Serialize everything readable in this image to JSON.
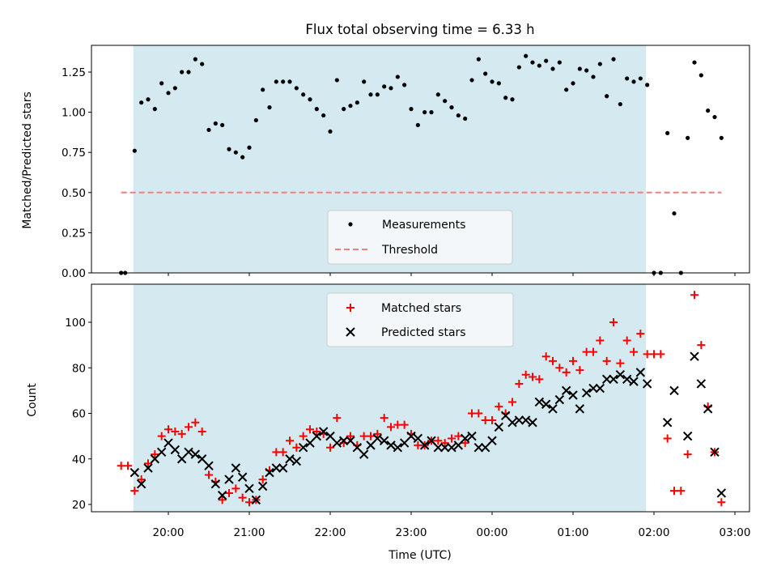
{
  "chart_data": [
    {
      "type": "scatter",
      "title": "Flux total observing time = 6.33 h",
      "ylabel": "Matched/Predicted stars",
      "ylim": [
        0,
        1.42
      ],
      "yticks": [
        "0.00",
        "0.25",
        "0.50",
        "0.75",
        "1.00",
        "1.25"
      ],
      "shaded_region": {
        "x_start": "19:34",
        "x_end": "01:54",
        "color": "#d4eaf0"
      },
      "legend": {
        "position": "lower center",
        "entries": [
          "Measurements",
          "Threshold"
        ]
      },
      "threshold": {
        "name": "Threshold",
        "value": 0.5,
        "x_start": "19:25",
        "x_end": "02:50",
        "color": "#f08080"
      },
      "series": [
        {
          "name": "Measurements",
          "color": "#000000",
          "x": [
            "19:25",
            "19:28",
            "19:35",
            "19:40",
            "19:45",
            "19:50",
            "19:55",
            "20:00",
            "20:05",
            "20:10",
            "20:15",
            "20:20",
            "20:25",
            "20:30",
            "20:35",
            "20:40",
            "20:45",
            "20:50",
            "20:55",
            "21:00",
            "21:05",
            "21:10",
            "21:15",
            "21:20",
            "21:25",
            "21:30",
            "21:35",
            "21:40",
            "21:45",
            "21:50",
            "21:55",
            "22:00",
            "22:05",
            "22:10",
            "22:15",
            "22:20",
            "22:25",
            "22:30",
            "22:35",
            "22:40",
            "22:45",
            "22:50",
            "22:55",
            "23:00",
            "23:05",
            "23:10",
            "23:15",
            "23:20",
            "23:25",
            "23:30",
            "23:35",
            "23:40",
            "23:45",
            "23:50",
            "23:55",
            "00:00",
            "00:05",
            "00:10",
            "00:15",
            "00:20",
            "00:25",
            "00:30",
            "00:35",
            "00:40",
            "00:45",
            "00:50",
            "00:55",
            "01:00",
            "01:05",
            "01:10",
            "01:15",
            "01:20",
            "01:25",
            "01:30",
            "01:35",
            "01:40",
            "01:45",
            "01:50",
            "01:55",
            "02:00",
            "02:05",
            "02:10",
            "02:15",
            "02:20",
            "02:25",
            "02:30",
            "02:35",
            "02:40",
            "02:45",
            "02:50"
          ],
          "y": [
            0.0,
            0.0,
            0.76,
            1.06,
            1.08,
            1.02,
            1.18,
            1.12,
            1.15,
            1.25,
            1.25,
            1.33,
            1.3,
            0.89,
            0.93,
            0.92,
            0.77,
            0.75,
            0.72,
            0.78,
            0.95,
            1.14,
            1.03,
            1.19,
            1.19,
            1.19,
            1.15,
            1.11,
            1.08,
            1.02,
            0.98,
            0.88,
            1.2,
            1.02,
            1.04,
            1.06,
            1.19,
            1.11,
            1.11,
            1.16,
            1.15,
            1.22,
            1.17,
            1.02,
            0.92,
            1.0,
            1.0,
            1.11,
            1.07,
            1.03,
            0.98,
            0.96,
            1.2,
            1.33,
            1.24,
            1.19,
            1.18,
            1.09,
            1.08,
            1.28,
            1.35,
            1.31,
            1.29,
            1.32,
            1.27,
            1.31,
            1.14,
            1.18,
            1.27,
            1.26,
            1.22,
            1.3,
            1.1,
            1.33,
            1.05,
            1.21,
            1.19,
            1.21,
            1.17,
            0.0,
            0.0,
            0.87,
            0.37,
            0.0,
            0.84,
            1.31,
            1.23,
            1.01,
            0.97,
            0.84
          ]
        }
      ]
    },
    {
      "type": "scatter",
      "xlabel": "Time (UTC)",
      "ylabel": "Count",
      "ylim": [
        16,
        116
      ],
      "yticks": [
        "20",
        "40",
        "60",
        "80",
        "100"
      ],
      "xticks": [
        "20:00",
        "21:00",
        "22:00",
        "23:00",
        "00:00",
        "01:00",
        "02:00",
        "03:00"
      ],
      "shaded_region": {
        "x_start": "19:34",
        "x_end": "01:54",
        "color": "#d4eaf0"
      },
      "legend": {
        "position": "upper center",
        "entries": [
          "Matched stars",
          "Predicted stars"
        ]
      },
      "series": [
        {
          "name": "Matched stars",
          "color": "#ff0000",
          "x": [
            "19:25",
            "19:30",
            "19:35",
            "19:40",
            "19:45",
            "19:50",
            "19:55",
            "20:00",
            "20:05",
            "20:10",
            "20:15",
            "20:20",
            "20:25",
            "20:30",
            "20:35",
            "20:40",
            "20:45",
            "20:50",
            "20:55",
            "21:00",
            "21:05",
            "21:10",
            "21:15",
            "21:20",
            "21:25",
            "21:30",
            "21:35",
            "21:40",
            "21:45",
            "21:50",
            "21:55",
            "22:00",
            "22:05",
            "22:10",
            "22:15",
            "22:20",
            "22:25",
            "22:30",
            "22:35",
            "22:40",
            "22:45",
            "22:50",
            "22:55",
            "23:00",
            "23:05",
            "23:10",
            "23:15",
            "23:20",
            "23:25",
            "23:30",
            "23:35",
            "23:40",
            "23:45",
            "23:50",
            "23:55",
            "00:00",
            "00:05",
            "00:10",
            "00:15",
            "00:20",
            "00:25",
            "00:30",
            "00:35",
            "00:40",
            "00:45",
            "00:50",
            "00:55",
            "01:00",
            "01:05",
            "01:10",
            "01:15",
            "01:20",
            "01:25",
            "01:30",
            "01:35",
            "01:40",
            "01:45",
            "01:50",
            "01:55",
            "02:00",
            "02:05",
            "02:10",
            "02:15",
            "02:20",
            "02:25",
            "02:30",
            "02:35",
            "02:40",
            "02:45",
            "02:50"
          ],
          "y": [
            37,
            37,
            26,
            31,
            38,
            42,
            50,
            53,
            52,
            51,
            54,
            56,
            52,
            33,
            30,
            22,
            25,
            27,
            23,
            21,
            22,
            31,
            35,
            43,
            43,
            48,
            45,
            50,
            53,
            52,
            51,
            45,
            58,
            47,
            50,
            46,
            50,
            50,
            51,
            58,
            54,
            55,
            55,
            51,
            46,
            46,
            48,
            48,
            47,
            49,
            50,
            47,
            60,
            60,
            57,
            57,
            63,
            60,
            65,
            73,
            77,
            76,
            75,
            85,
            83,
            80,
            78,
            83,
            79,
            87,
            87,
            92,
            83,
            100,
            82,
            92,
            87,
            95,
            86,
            86,
            86,
            49,
            26,
            26,
            42,
            112,
            90,
            63,
            43,
            21
          ]
        },
        {
          "name": "Predicted stars",
          "color": "#000000",
          "x": [
            "19:35",
            "19:40",
            "19:45",
            "19:50",
            "19:55",
            "20:00",
            "20:05",
            "20:10",
            "20:15",
            "20:20",
            "20:25",
            "20:30",
            "20:35",
            "20:40",
            "20:45",
            "20:50",
            "20:55",
            "21:00",
            "21:05",
            "21:10",
            "21:15",
            "21:20",
            "21:25",
            "21:30",
            "21:35",
            "21:40",
            "21:45",
            "21:50",
            "21:55",
            "22:00",
            "22:05",
            "22:10",
            "22:15",
            "22:20",
            "22:25",
            "22:30",
            "22:35",
            "22:40",
            "22:45",
            "22:50",
            "22:55",
            "23:00",
            "23:05",
            "23:10",
            "23:15",
            "23:20",
            "23:25",
            "23:30",
            "23:35",
            "23:40",
            "23:45",
            "23:50",
            "23:55",
            "00:00",
            "00:05",
            "00:10",
            "00:15",
            "00:20",
            "00:25",
            "00:30",
            "00:35",
            "00:40",
            "00:45",
            "00:50",
            "00:55",
            "01:00",
            "01:05",
            "01:10",
            "01:15",
            "01:20",
            "01:25",
            "01:30",
            "01:35",
            "01:40",
            "01:45",
            "01:50",
            "01:55",
            "02:10",
            "02:15",
            "02:25",
            "02:30",
            "02:35",
            "02:40",
            "02:45",
            "02:50"
          ],
          "y": [
            34,
            29,
            36,
            40,
            43,
            47,
            44,
            40,
            43,
            42,
            40,
            37,
            29,
            24,
            31,
            36,
            32,
            27,
            22,
            28,
            34,
            36,
            36,
            40,
            39,
            45,
            47,
            50,
            52,
            50,
            47,
            48,
            48,
            45,
            42,
            46,
            49,
            48,
            46,
            45,
            47,
            50,
            49,
            46,
            48,
            45,
            45,
            45,
            46,
            49,
            50,
            45,
            45,
            48,
            54,
            59,
            56,
            57,
            57,
            56,
            65,
            64,
            62,
            66,
            70,
            68,
            62,
            69,
            71,
            71,
            75,
            75,
            77,
            75,
            74,
            78,
            73,
            56,
            70,
            50,
            85,
            73,
            62,
            43,
            25
          ]
        }
      ]
    }
  ]
}
